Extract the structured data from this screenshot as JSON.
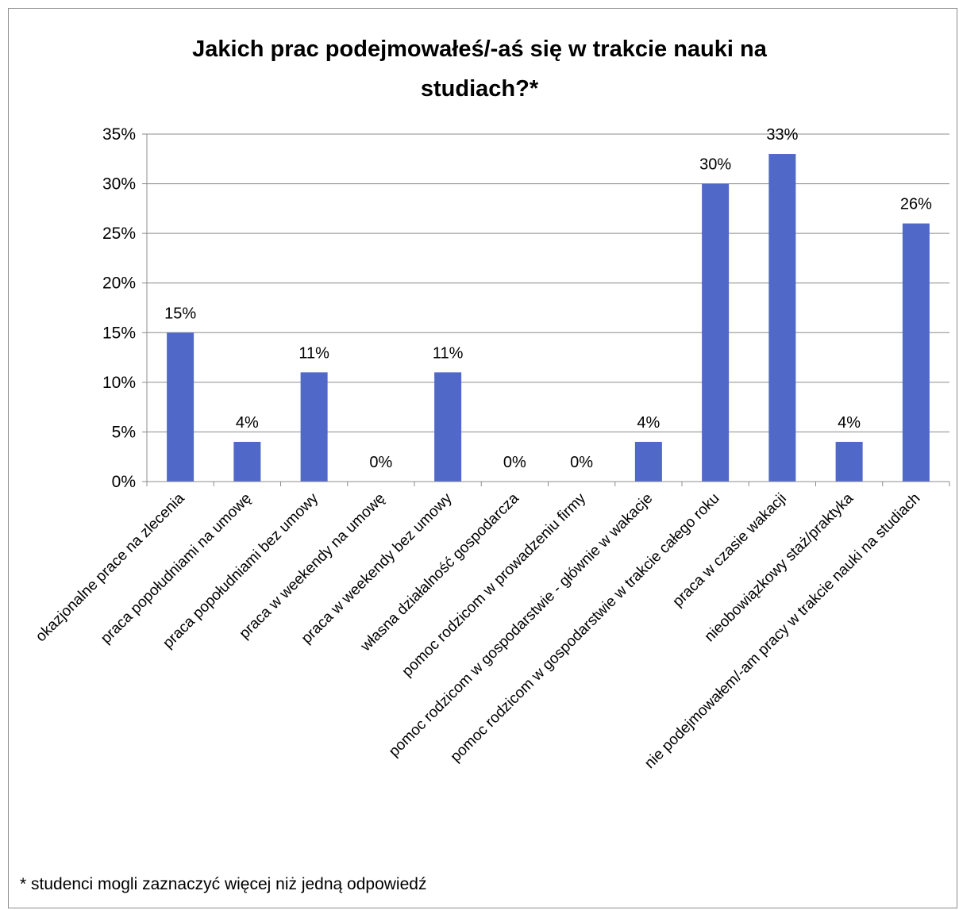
{
  "chart_data": {
    "type": "bar",
    "title_line1": "Jakich prac podejmowałeś/-aś się  w trakcie nauki na",
    "title_line2": "studiach?*",
    "categories": [
      "okazjonalne prace na zlecenia",
      "praca popołudniami na umowę",
      "praca popołudniami bez umowy",
      "praca w weekendy na umowę",
      "praca w weekendy bez umowy",
      "własna działalność gospodarcza",
      "pomoc rodzicom w prowadzeniu firmy",
      "pomoc rodzicom w gospodarstwie - głównie w wakacje",
      "pomoc rodzicom w gospodarstwie w trakcie całego roku",
      "praca w czasie wakacji",
      "nieobowiązkowy staż/praktyka",
      "nie podejmowałem/-am pracy w trakcie nauki na studiach"
    ],
    "values": [
      15,
      4,
      11,
      0,
      11,
      0,
      0,
      4,
      30,
      33,
      4,
      26
    ],
    "value_labels": [
      "15%",
      "4%",
      "11%",
      "0%",
      "11%",
      "0%",
      "0%",
      "4%",
      "30%",
      "33%",
      "4%",
      "26%"
    ],
    "yticks": [
      "0%",
      "5%",
      "10%",
      "15%",
      "20%",
      "25%",
      "30%",
      "35%"
    ],
    "ylim": [
      0,
      35
    ],
    "grid": true,
    "legend": "none",
    "bar_color": "#5068C8",
    "footnote": "* studenci mogli zaznaczyć więcej niż jedną odpowiedź"
  }
}
